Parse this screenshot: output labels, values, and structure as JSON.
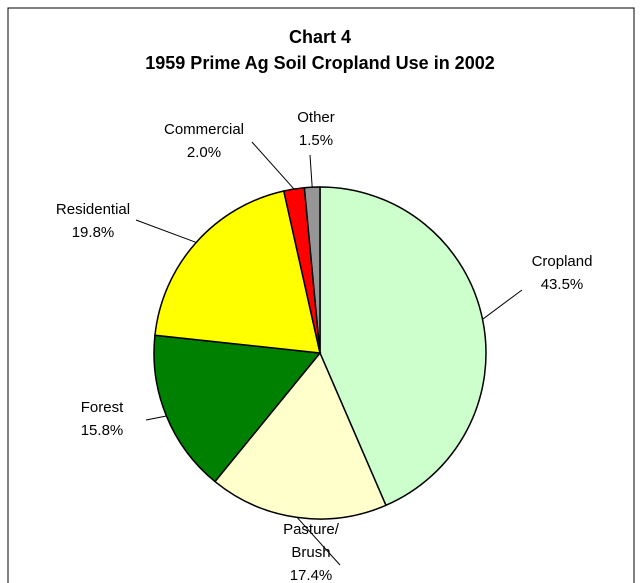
{
  "chart_data": {
    "type": "pie",
    "title": "Chart 4",
    "subtitle": "1959 Prime Ag Soil Cropland Use in 2002",
    "categories": [
      "Cropland",
      "Pasture/ Brush",
      "Forest",
      "Residential",
      "Commercial",
      "Other"
    ],
    "values": [
      43.5,
      17.4,
      15.8,
      19.8,
      2.0,
      1.5
    ],
    "value_labels": [
      "43.5%",
      "17.4%",
      "15.8%",
      "19.8%",
      "2.0%",
      "1.5%"
    ],
    "colors": [
      "#ccffcc",
      "#ffffcc",
      "#008000",
      "#ffff00",
      "#ff0000",
      "#969696"
    ]
  }
}
